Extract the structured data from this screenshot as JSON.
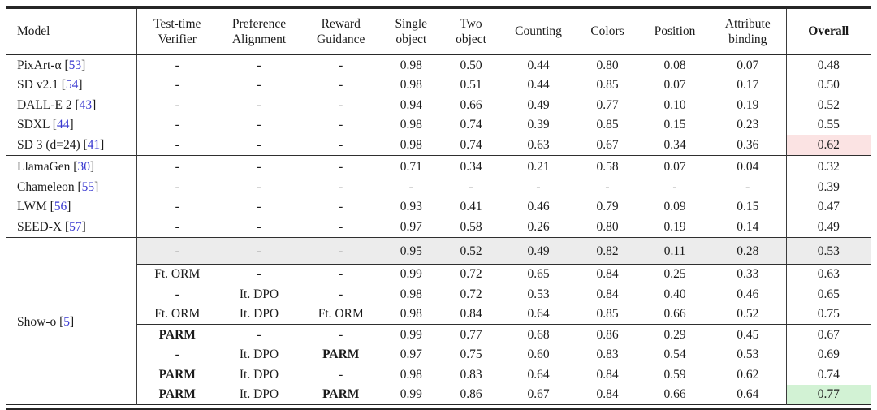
{
  "table": {
    "headers": [
      "Model",
      "Test-time\nVerifier",
      "Preference\nAlignment",
      "Reward\nGuidance",
      "Single\nobject",
      "Two\nobject",
      "Counting",
      "Colors",
      "Position",
      "Attribute\nbinding",
      "Overall"
    ],
    "bold_token": "PARM",
    "colors": {
      "citation": "#3a3ad1",
      "summary_row_bg": "#ececec",
      "highlight_red": "#fbe3e3",
      "highlight_green": "#d2f2d4"
    },
    "sections": [
      {
        "name": "diffusion-models",
        "rows": [
          {
            "model": {
              "name": "PixArt-α",
              "cite": "53"
            },
            "values": [
              "-",
              "-",
              "-",
              "0.98",
              "0.50",
              "0.44",
              "0.80",
              "0.08",
              "0.07"
            ],
            "overall": "0.48"
          },
          {
            "model": {
              "name": "SD v2.1",
              "cite": "54"
            },
            "values": [
              "-",
              "-",
              "-",
              "0.98",
              "0.51",
              "0.44",
              "0.85",
              "0.07",
              "0.17"
            ],
            "overall": "0.50"
          },
          {
            "model": {
              "name": "DALL-E 2",
              "cite": "43"
            },
            "values": [
              "-",
              "-",
              "-",
              "0.94",
              "0.66",
              "0.49",
              "0.77",
              "0.10",
              "0.19"
            ],
            "overall": "0.52"
          },
          {
            "model": {
              "name": "SDXL",
              "cite": "44"
            },
            "values": [
              "-",
              "-",
              "-",
              "0.98",
              "0.74",
              "0.39",
              "0.85",
              "0.15",
              "0.23"
            ],
            "overall": "0.55"
          },
          {
            "model": {
              "name": "SD 3 (d=24)",
              "cite": "41"
            },
            "values": [
              "-",
              "-",
              "-",
              "0.98",
              "0.74",
              "0.63",
              "0.67",
              "0.34",
              "0.36"
            ],
            "overall": "0.62",
            "overall_highlight": "highlight_red"
          }
        ]
      },
      {
        "name": "autoregressive-models",
        "rows": [
          {
            "model": {
              "name": "LlamaGen",
              "cite": "30"
            },
            "values": [
              "-",
              "-",
              "-",
              "0.71",
              "0.34",
              "0.21",
              "0.58",
              "0.07",
              "0.04"
            ],
            "overall": "0.32"
          },
          {
            "model": {
              "name": "Chameleon",
              "cite": "55"
            },
            "values": [
              "-",
              "-",
              "-",
              "-",
              "-",
              "-",
              "-",
              "-",
              "-"
            ],
            "overall": "0.39"
          },
          {
            "model": {
              "name": "LWM",
              "cite": "56"
            },
            "values": [
              "-",
              "-",
              "-",
              "0.93",
              "0.41",
              "0.46",
              "0.79",
              "0.09",
              "0.15"
            ],
            "overall": "0.47"
          },
          {
            "model": {
              "name": "SEED-X",
              "cite": "57"
            },
            "values": [
              "-",
              "-",
              "-",
              "0.97",
              "0.58",
              "0.26",
              "0.80",
              "0.19",
              "0.14"
            ],
            "overall": "0.49"
          }
        ]
      },
      {
        "name": "show-o",
        "model": {
          "name": "Show-o",
          "cite": "5"
        },
        "summary_row": {
          "values": [
            "-",
            "-",
            "-",
            "0.95",
            "0.52",
            "0.49",
            "0.82",
            "0.11",
            "0.28"
          ],
          "overall": "0.53"
        },
        "subsections": [
          {
            "rows": [
              {
                "values": [
                  "Ft. ORM",
                  "-",
                  "-",
                  "0.99",
                  "0.72",
                  "0.65",
                  "0.84",
                  "0.25",
                  "0.33"
                ],
                "overall": "0.63"
              },
              {
                "values": [
                  "-",
                  "It. DPO",
                  "-",
                  "0.98",
                  "0.72",
                  "0.53",
                  "0.84",
                  "0.40",
                  "0.46"
                ],
                "overall": "0.65"
              },
              {
                "values": [
                  "Ft. ORM",
                  "It. DPO",
                  "Ft. ORM",
                  "0.98",
                  "0.84",
                  "0.64",
                  "0.85",
                  "0.66",
                  "0.52"
                ],
                "overall": "0.75"
              }
            ]
          },
          {
            "rows": [
              {
                "values": [
                  "PARM",
                  "-",
                  "-",
                  "0.99",
                  "0.77",
                  "0.68",
                  "0.86",
                  "0.29",
                  "0.45"
                ],
                "overall": "0.67"
              },
              {
                "values": [
                  "-",
                  "It. DPO",
                  "PARM",
                  "0.97",
                  "0.75",
                  "0.60",
                  "0.83",
                  "0.54",
                  "0.53"
                ],
                "overall": "0.69"
              },
              {
                "values": [
                  "PARM",
                  "It. DPO",
                  "-",
                  "0.98",
                  "0.83",
                  "0.64",
                  "0.84",
                  "0.59",
                  "0.62"
                ],
                "overall": "0.74"
              },
              {
                "values": [
                  "PARM",
                  "It. DPO",
                  "PARM",
                  "0.99",
                  "0.86",
                  "0.67",
                  "0.84",
                  "0.66",
                  "0.64"
                ],
                "overall": "0.77",
                "overall_highlight": "highlight_green"
              }
            ]
          }
        ]
      }
    ]
  }
}
